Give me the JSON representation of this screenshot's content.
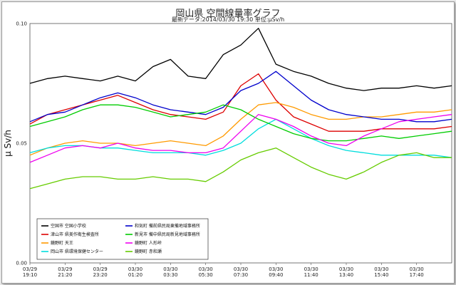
{
  "chart_data": {
    "type": "line",
    "title": "岡山県 空間線量率グラフ",
    "subtitle_prefix": "最新データ:",
    "subtitle_time": "2014/03/30 19:30",
    "subtitle_unit_label": "単位:",
    "unit": "μSv/h",
    "ylabel": "μ Sv/h",
    "ylim": [
      0.0,
      0.1
    ],
    "ytick_labels": [
      "0.00",
      "0.05",
      "0.10"
    ],
    "ytick_values": [
      0.0,
      0.05,
      0.1
    ],
    "grid": "horizontal",
    "legend_placement": "bottom-left",
    "x": [
      "03/29 19:10",
      "03/29 20:10",
      "03/29 21:10",
      "03/29 22:10",
      "03/29 23:10",
      "03/30 00:10",
      "03/30 01:10",
      "03/30 02:10",
      "03/30 03:10",
      "03/30 04:10",
      "03/30 05:10",
      "03/30 06:10",
      "03/30 07:10",
      "03/30 08:10",
      "03/30 09:10",
      "03/30 10:10",
      "03/30 11:10",
      "03/30 12:10",
      "03/30 13:10",
      "03/30 14:10",
      "03/30 15:10",
      "03/30 16:10",
      "03/30 17:10",
      "03/30 18:10",
      "03/30 19:10"
    ],
    "xtick_labels": [
      {
        "at": 0,
        "date": "03/29",
        "time": "19:10"
      },
      {
        "at": 2,
        "date": "03/29",
        "time": "21:20"
      },
      {
        "at": 4,
        "date": "03/29",
        "time": "23:20"
      },
      {
        "at": 6,
        "date": "03/30",
        "time": "01:20"
      },
      {
        "at": 8,
        "date": "03/30",
        "time": "03:30"
      },
      {
        "at": 10,
        "date": "03/30",
        "time": "05:30"
      },
      {
        "at": 12,
        "date": "03/30",
        "time": "07:30"
      },
      {
        "at": 14,
        "date": "03/30",
        "time": "09:40"
      },
      {
        "at": 16,
        "date": "03/30",
        "time": "11:40"
      },
      {
        "at": 18,
        "date": "03/30",
        "time": "13:40"
      },
      {
        "at": 20,
        "date": "03/30",
        "time": "15:40"
      },
      {
        "at": 22,
        "date": "03/30",
        "time": "17:40"
      }
    ],
    "series": [
      {
        "name": "空国市 空国小学校",
        "color": "#000000",
        "values": [
          0.075,
          0.077,
          0.078,
          0.077,
          0.076,
          0.078,
          0.076,
          0.082,
          0.085,
          0.078,
          0.077,
          0.087,
          0.091,
          0.098,
          0.083,
          0.08,
          0.078,
          0.075,
          0.073,
          0.072,
          0.073,
          0.073,
          0.074,
          0.073,
          0.074
        ]
      },
      {
        "name": "津山市 県美作衛生検査所",
        "color": "#dd0000",
        "values": [
          0.058,
          0.062,
          0.064,
          0.066,
          0.068,
          0.07,
          0.067,
          0.064,
          0.062,
          0.061,
          0.06,
          0.063,
          0.074,
          0.079,
          0.068,
          0.061,
          0.058,
          0.055,
          0.055,
          0.055,
          0.056,
          0.056,
          0.056,
          0.056,
          0.057
        ]
      },
      {
        "name": "鏡野町 天王",
        "color": "#ff9a00",
        "values": [
          0.045,
          0.048,
          0.05,
          0.051,
          0.05,
          0.05,
          0.049,
          0.05,
          0.051,
          0.05,
          0.049,
          0.053,
          0.06,
          0.066,
          0.067,
          0.065,
          0.062,
          0.06,
          0.06,
          0.061,
          0.061,
          0.062,
          0.063,
          0.063,
          0.064
        ]
      },
      {
        "name": "岡山市 県環境保健センター",
        "color": "#00dddd",
        "values": [
          0.046,
          0.048,
          0.049,
          0.049,
          0.048,
          0.048,
          0.047,
          0.046,
          0.046,
          0.046,
          0.045,
          0.047,
          0.05,
          0.056,
          0.06,
          0.056,
          0.052,
          0.049,
          0.047,
          0.046,
          0.045,
          0.045,
          0.045,
          0.045,
          0.044
        ]
      },
      {
        "name": "和気町 備前県民局東備地域事務所",
        "color": "#0000cc",
        "values": [
          0.059,
          0.062,
          0.063,
          0.066,
          0.069,
          0.071,
          0.069,
          0.066,
          0.064,
          0.063,
          0.062,
          0.065,
          0.072,
          0.075,
          0.08,
          0.074,
          0.068,
          0.064,
          0.062,
          0.061,
          0.06,
          0.06,
          0.059,
          0.059,
          0.06
        ]
      },
      {
        "name": "新見市 備中県民局新見地域事務所",
        "color": "#00cc00",
        "values": [
          0.057,
          0.059,
          0.061,
          0.064,
          0.066,
          0.066,
          0.065,
          0.063,
          0.061,
          0.062,
          0.063,
          0.066,
          0.064,
          0.06,
          0.057,
          0.054,
          0.052,
          0.051,
          0.051,
          0.052,
          0.053,
          0.052,
          0.053,
          0.054,
          0.055
        ]
      },
      {
        "name": "鏡野町 人形峠",
        "color": "#ee00ee",
        "values": [
          0.042,
          0.045,
          0.048,
          0.049,
          0.048,
          0.05,
          0.048,
          0.047,
          0.047,
          0.046,
          0.046,
          0.048,
          0.055,
          0.062,
          0.06,
          0.057,
          0.053,
          0.05,
          0.049,
          0.053,
          0.056,
          0.059,
          0.06,
          0.061,
          0.062
        ]
      },
      {
        "name": "鏡野町 赤和瀬",
        "color": "#66cc00",
        "values": [
          0.031,
          0.033,
          0.035,
          0.036,
          0.036,
          0.035,
          0.035,
          0.036,
          0.035,
          0.035,
          0.034,
          0.038,
          0.043,
          0.046,
          0.048,
          0.044,
          0.04,
          0.037,
          0.035,
          0.038,
          0.042,
          0.045,
          0.046,
          0.044,
          0.044
        ]
      }
    ]
  }
}
